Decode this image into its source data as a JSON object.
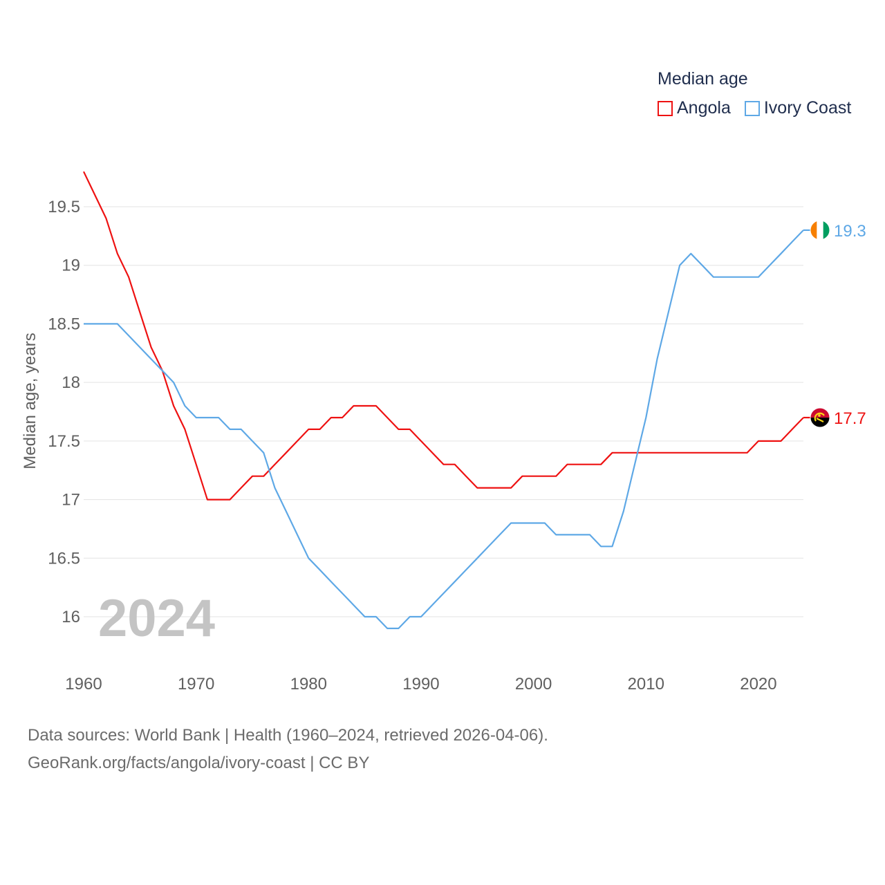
{
  "chart_data": {
    "type": "line",
    "title": "Median age",
    "ylabel": "Median age, years",
    "xlabel": "",
    "year_label": "2024",
    "xlim": [
      1960,
      2024
    ],
    "ylim": [
      15.7,
      19.9
    ],
    "x_ticks": [
      1960,
      1970,
      1980,
      1990,
      2000,
      2010,
      2020
    ],
    "y_ticks": [
      16,
      16.5,
      17,
      17.5,
      18,
      18.5,
      19,
      19.5
    ],
    "y_tick_labels": [
      "16",
      "16.5",
      "17",
      "17.5",
      "18",
      "18.5",
      "19",
      "19.5"
    ],
    "grid": true,
    "legend_position": "top-right",
    "x": [
      1960,
      1961,
      1962,
      1963,
      1964,
      1965,
      1966,
      1967,
      1968,
      1969,
      1970,
      1971,
      1972,
      1973,
      1974,
      1975,
      1976,
      1977,
      1978,
      1979,
      1980,
      1981,
      1982,
      1983,
      1984,
      1985,
      1986,
      1987,
      1988,
      1989,
      1990,
      1991,
      1992,
      1993,
      1994,
      1995,
      1996,
      1997,
      1998,
      1999,
      2000,
      2001,
      2002,
      2003,
      2004,
      2005,
      2006,
      2007,
      2008,
      2009,
      2010,
      2011,
      2012,
      2013,
      2014,
      2015,
      2016,
      2017,
      2018,
      2019,
      2020,
      2021,
      2022,
      2023,
      2024
    ],
    "series": [
      {
        "name": "Angola",
        "color": "#ee1111",
        "end_label": "17.7",
        "flag": "angola-flag",
        "values": [
          19.8,
          19.6,
          19.4,
          19.1,
          18.9,
          18.6,
          18.3,
          18.1,
          17.8,
          17.6,
          17.3,
          17.0,
          17.0,
          17.0,
          17.1,
          17.2,
          17.2,
          17.3,
          17.4,
          17.5,
          17.6,
          17.6,
          17.7,
          17.7,
          17.8,
          17.8,
          17.8,
          17.7,
          17.6,
          17.6,
          17.5,
          17.4,
          17.3,
          17.3,
          17.2,
          17.1,
          17.1,
          17.1,
          17.1,
          17.2,
          17.2,
          17.2,
          17.2,
          17.3,
          17.3,
          17.3,
          17.3,
          17.4,
          17.4,
          17.4,
          17.4,
          17.4,
          17.4,
          17.4,
          17.4,
          17.4,
          17.4,
          17.4,
          17.4,
          17.4,
          17.5,
          17.5,
          17.5,
          17.6,
          17.7
        ]
      },
      {
        "name": "Ivory Coast",
        "color": "#5ea8e6",
        "end_label": "19.3",
        "flag": "ivory-coast-flag",
        "values": [
          18.5,
          18.5,
          18.5,
          18.5,
          18.4,
          18.3,
          18.2,
          18.1,
          18.0,
          17.8,
          17.7,
          17.7,
          17.7,
          17.6,
          17.6,
          17.5,
          17.4,
          17.1,
          16.9,
          16.7,
          16.5,
          16.4,
          16.3,
          16.2,
          16.1,
          16.0,
          16.0,
          15.9,
          15.9,
          16.0,
          16.0,
          16.1,
          16.2,
          16.3,
          16.4,
          16.5,
          16.6,
          16.7,
          16.8,
          16.8,
          16.8,
          16.8,
          16.7,
          16.7,
          16.7,
          16.7,
          16.6,
          16.6,
          16.9,
          17.3,
          17.7,
          18.2,
          18.6,
          19.0,
          19.1,
          19.0,
          18.9,
          18.9,
          18.9,
          18.9,
          18.9,
          19.0,
          19.1,
          19.2,
          19.3
        ]
      }
    ]
  },
  "legend": {
    "title": "Median age",
    "items": [
      "Angola",
      "Ivory Coast"
    ]
  },
  "footer": {
    "line1": "Data sources: World Bank | Health (1960–2024, retrieved 2026-04-06).",
    "line2": "GeoRank.org/facts/angola/ivory-coast | CC BY"
  }
}
